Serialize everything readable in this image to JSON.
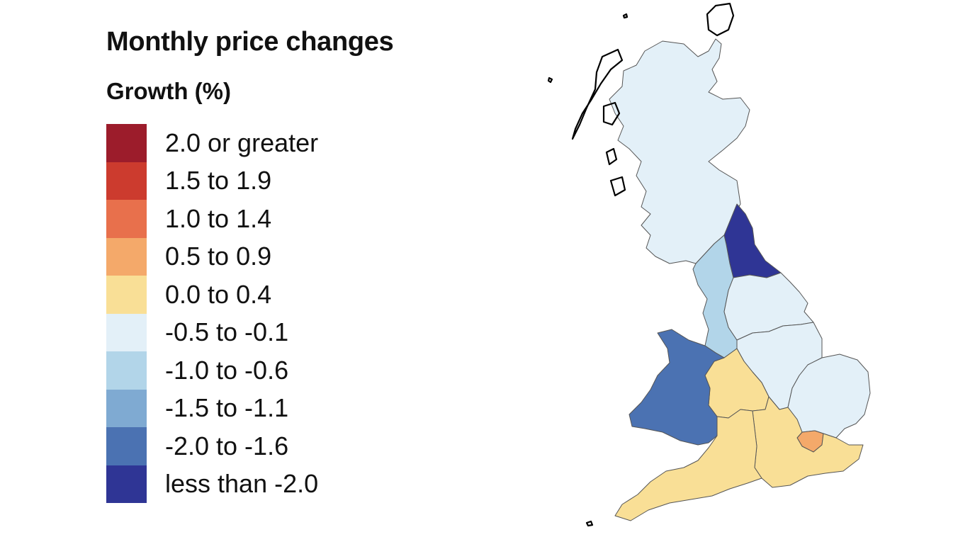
{
  "title": "Monthly price changes",
  "legend": {
    "heading": "Growth (%)",
    "items": [
      {
        "label": "2.0 or greater",
        "color": "#9c1c2b"
      },
      {
        "label": "1.5 to 1.9",
        "color": "#cc3b2e"
      },
      {
        "label": "1.0 to 1.4",
        "color": "#e8704c"
      },
      {
        "label": "0.5 to 0.9",
        "color": "#f4a96a"
      },
      {
        "label": "0.0 to 0.4",
        "color": "#f9df96"
      },
      {
        "label": "-0.5 to -0.1",
        "color": "#e3f0f8"
      },
      {
        "label": "-1.0 to -0.6",
        "color": "#b2d5e9"
      },
      {
        "label": "-1.5 to -1.1",
        "color": "#7faad2"
      },
      {
        "label": "-2.0 to -1.6",
        "color": "#4b72b2"
      },
      {
        "label": "less than -2.0",
        "color": "#2f3595"
      }
    ]
  },
  "regions": [
    {
      "name": "Scotland",
      "band": "-0.5 to -0.1"
    },
    {
      "name": "North East",
      "band": "less than -2.0"
    },
    {
      "name": "North West",
      "band": "-1.0 to -0.6"
    },
    {
      "name": "Yorkshire and The Humber",
      "band": "-0.5 to -0.1"
    },
    {
      "name": "East Midlands",
      "band": "-0.5 to -0.1"
    },
    {
      "name": "West Midlands",
      "band": "0.0 to 0.4"
    },
    {
      "name": "East of England",
      "band": "-0.5 to -0.1"
    },
    {
      "name": "Wales",
      "band": "-2.0 to -1.6"
    },
    {
      "name": "South West",
      "band": "0.0 to 0.4"
    },
    {
      "name": "South East",
      "band": "0.0 to 0.4"
    },
    {
      "name": "London",
      "band": "0.5 to 0.9"
    }
  ]
}
